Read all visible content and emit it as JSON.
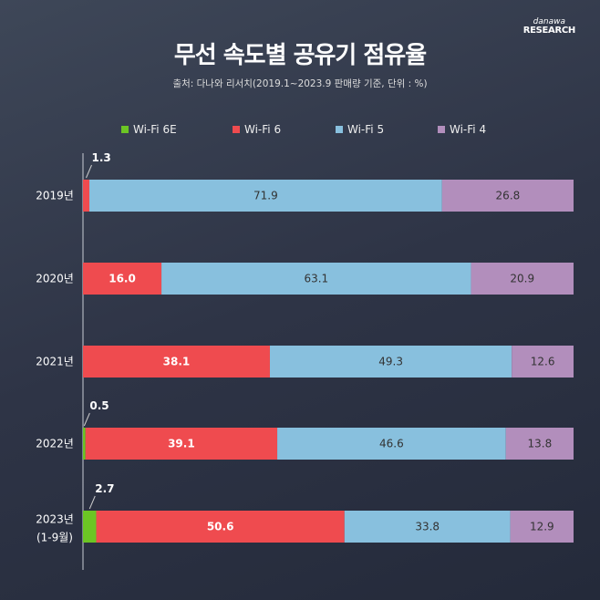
{
  "logo": {
    "small": "danawa",
    "big": "RESEARCH"
  },
  "title": "무선 속도별 공유기 점유율",
  "subtitle": "출처: 다나와 리서치(2019.1~2023.9 판매량 기준, 단위 : %)",
  "chart_data": {
    "type": "bar",
    "stacked": true,
    "orientation": "horizontal",
    "title": "무선 속도별 공유기 점유율",
    "categories": [
      "2019년",
      "2020년",
      "2021년",
      "2022년",
      "2023년 (1-9월)"
    ],
    "series": [
      {
        "name": "Wi-Fi 6E",
        "color": "#6cc524",
        "values": [
          0,
          0,
          0,
          0.5,
          2.7
        ]
      },
      {
        "name": "Wi-Fi 6",
        "color": "#ef4b4f",
        "values": [
          1.3,
          16.0,
          38.1,
          39.1,
          50.6
        ]
      },
      {
        "name": "Wi-Fi 5",
        "color": "#88c0de",
        "values": [
          71.9,
          63.1,
          49.3,
          46.6,
          33.8
        ]
      },
      {
        "name": "Wi-Fi 4",
        "color": "#b28ebc",
        "values": [
          26.8,
          20.9,
          12.6,
          13.8,
          12.9
        ]
      }
    ],
    "labels": [
      [
        null,
        "1.3",
        "71.9",
        "26.8"
      ],
      [
        null,
        "16.0",
        "63.1",
        "20.9"
      ],
      [
        null,
        "38.1",
        "49.3",
        "12.6"
      ],
      [
        "0.5",
        "39.1",
        "46.6",
        "13.8"
      ],
      [
        "2.7",
        "50.6",
        "33.8",
        "12.9"
      ]
    ],
    "xlim": [
      0,
      100
    ],
    "legend": "top"
  }
}
